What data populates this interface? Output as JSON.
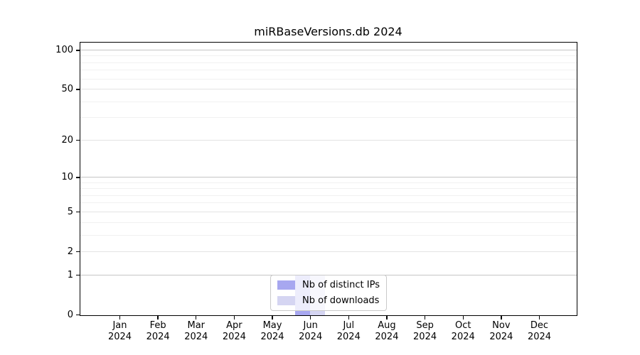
{
  "chart_data": {
    "type": "bar",
    "title": "miRBaseVersions.db 2024",
    "categories": [
      "Jan",
      "Feb",
      "Mar",
      "Apr",
      "May",
      "Jun",
      "Jul",
      "Aug",
      "Sep",
      "Oct",
      "Nov",
      "Dec"
    ],
    "x_tick_year": "2024",
    "series": [
      {
        "name": "Nb of distinct IPs",
        "color": "#a7a7f0",
        "values": [
          0,
          0,
          0,
          0,
          0,
          1,
          0,
          0,
          0,
          0,
          0,
          0
        ]
      },
      {
        "name": "Nb of downloads",
        "color": "#d5d5f2",
        "values": [
          0,
          0,
          0,
          0,
          0,
          1,
          0,
          0,
          0,
          0,
          0,
          0
        ]
      }
    ],
    "y_axis": {
      "scale": "log1p",
      "tick_labels": [
        0,
        1,
        2,
        5,
        10,
        20,
        50,
        100
      ],
      "range_max": 113,
      "gridlines": {
        "strong": [
          1,
          10,
          100
        ],
        "medium": [
          2,
          5,
          20,
          50
        ],
        "faint": [
          3,
          4,
          6,
          7,
          8,
          9,
          30,
          40,
          60,
          70,
          80,
          90
        ]
      }
    },
    "legend": {
      "position": "lower center"
    },
    "grid": true
  },
  "colors": {
    "background": "#ffffff",
    "axis": "#000000",
    "text": "#000000",
    "grid_strong": "#c5c5c5",
    "grid_medium": "#e3e3e3",
    "grid_faint": "#f1f1f1",
    "legend_border": "#c9c9c9"
  }
}
